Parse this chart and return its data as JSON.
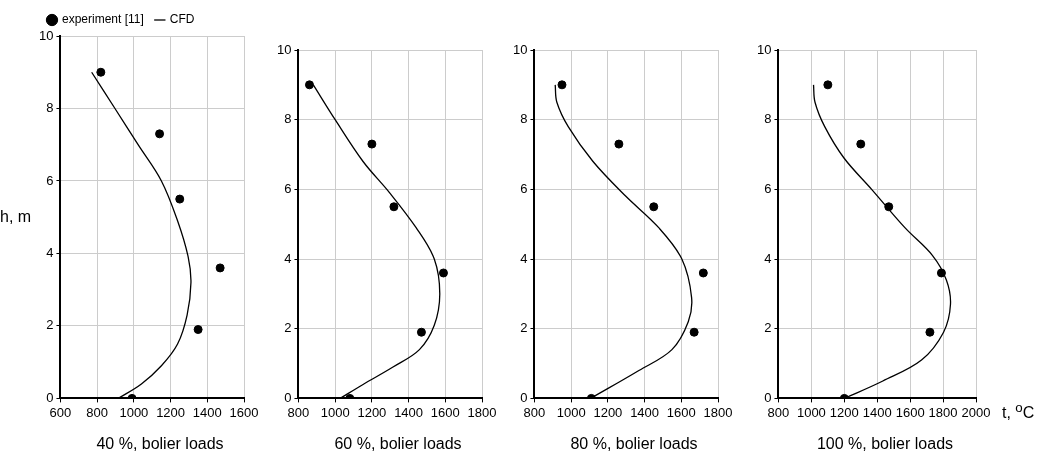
{
  "chart_data": [
    {
      "type": "scatter",
      "ylabel": "h, m",
      "annotations": [
        "40 %, bolier loads"
      ],
      "xlim": [
        600,
        1600
      ],
      "xticks": [
        600,
        800,
        1000,
        1200,
        1400,
        1600
      ],
      "ylim": [
        0,
        10
      ],
      "yticks": [
        0,
        2,
        4,
        6,
        8,
        10
      ],
      "grid": true,
      "legend": "top left",
      "series": [
        {
          "name": "experiment [11]",
          "type": "scatter",
          "marker": "circle",
          "color": "#000000",
          "x": [
            820,
            1140,
            1250,
            1470,
            1350,
            990
          ],
          "values": [
            9.0,
            7.3,
            5.5,
            3.6,
            1.9,
            0
          ]
        },
        {
          "name": "CFD",
          "type": "line",
          "marker": "none",
          "line_style": "solid",
          "color": "#000000",
          "x": [
            770,
            897,
            1023,
            1150,
            1238,
            1296,
            1311,
            1290,
            1238,
            1150,
            1041,
            915
          ],
          "values": [
            9.0,
            8.0,
            7.0,
            6.0,
            4.9,
            3.9,
            3.2,
            2.3,
            1.5,
            0.9,
            0.4,
            0
          ]
        }
      ]
    },
    {
      "type": "scatter",
      "annotations": [
        "60 %, bolier loads"
      ],
      "xlim": [
        800,
        1800
      ],
      "xticks": [
        800,
        1000,
        1200,
        1400,
        1600,
        1800
      ],
      "ylim": [
        0,
        10
      ],
      "yticks": [
        0,
        2,
        4,
        6,
        8,
        10
      ],
      "grid": true,
      "series": [
        {
          "type": "scatter",
          "marker": "circle",
          "color": "#000000",
          "x": [
            860,
            1200,
            1320,
            1590,
            1470,
            1080
          ],
          "values": [
            9.0,
            7.3,
            5.5,
            3.6,
            1.9,
            0
          ]
        },
        {
          "type": "line",
          "marker": "none",
          "line_style": "solid",
          "color": "#000000",
          "x": [
            881,
            1000,
            1152,
            1297,
            1441,
            1540,
            1570,
            1540,
            1459,
            1315,
            1152,
            1027
          ],
          "values": [
            9.0,
            8.0,
            6.8,
            5.9,
            4.9,
            4.0,
            3.0,
            2.1,
            1.4,
            0.9,
            0.4,
            0
          ]
        }
      ]
    },
    {
      "type": "scatter",
      "annotations": [
        "80 %, bolier loads"
      ],
      "xlim": [
        800,
        1800
      ],
      "xticks": [
        800,
        1000,
        1200,
        1400,
        1600,
        1800
      ],
      "ylim": [
        0,
        10
      ],
      "yticks": [
        0,
        2,
        4,
        6,
        8,
        10
      ],
      "grid": true,
      "series": [
        {
          "type": "scatter",
          "marker": "circle",
          "color": "#000000",
          "x": [
            950,
            1260,
            1450,
            1720,
            1670,
            1110
          ],
          "values": [
            9.0,
            7.3,
            5.5,
            3.6,
            1.9,
            0
          ]
        },
        {
          "type": "line",
          "marker": "none",
          "line_style": "solid",
          "color": "#000000",
          "x": [
            913,
            922,
            984,
            1119,
            1298,
            1477,
            1603,
            1656,
            1638,
            1549,
            1369,
            1106
          ],
          "values": [
            9.0,
            8.5,
            7.8,
            6.8,
            5.8,
            4.9,
            4.0,
            2.9,
            2.2,
            1.4,
            0.8,
            0
          ]
        }
      ]
    },
    {
      "type": "scatter",
      "xlabel": "t, $^{o}$C",
      "annotations": [
        "100 %, bolier loads"
      ],
      "xlim": [
        800,
        2000
      ],
      "xticks": [
        800,
        1000,
        1200,
        1400,
        1600,
        1800,
        2000
      ],
      "ylim": [
        0,
        10
      ],
      "yticks": [
        0,
        2,
        4,
        6,
        8,
        10
      ],
      "grid": true,
      "series": [
        {
          "type": "scatter",
          "marker": "circle",
          "color": "#000000",
          "x": [
            1100,
            1300,
            1470,
            1790,
            1720,
            1200
          ],
          "values": [
            9.0,
            7.3,
            5.5,
            3.6,
            1.9,
            0
          ]
        },
        {
          "type": "line",
          "marker": "none",
          "line_style": "solid",
          "color": "#000000",
          "x": [
            1013,
            1022,
            1081,
            1198,
            1366,
            1568,
            1736,
            1820,
            1845,
            1803,
            1669,
            1434,
            1200
          ],
          "values": [
            9.0,
            8.5,
            7.8,
            6.9,
            6.0,
            4.9,
            4.1,
            3.4,
            2.7,
            1.9,
            1.1,
            0.5,
            0
          ]
        }
      ]
    }
  ]
}
